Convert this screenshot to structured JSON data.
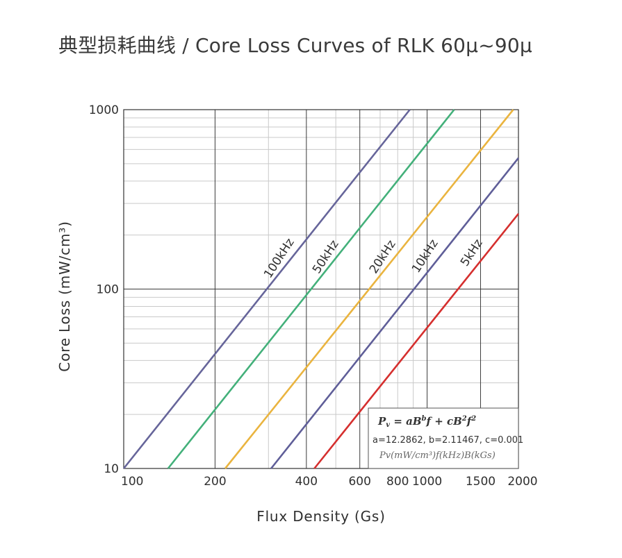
{
  "title": "典型损耗曲线 / Core Loss Curves of RLK 60μ~90μ",
  "chart_data": {
    "type": "line",
    "xscale": "log",
    "yscale": "log",
    "xlabel": "Flux Density (Gs)",
    "ylabel": "Core Loss (mW/cm³)",
    "xlim": [
      100,
      2000
    ],
    "ylim": [
      10,
      1000
    ],
    "grid": true,
    "x_ticks": [
      {
        "value": 100,
        "label": "100"
      },
      {
        "value": 200,
        "label": "200"
      },
      {
        "value": 400,
        "label": "400"
      },
      {
        "value": 600,
        "label": "600"
      },
      {
        "value": 800,
        "label": "800"
      },
      {
        "value": 1000,
        "label": "1000"
      },
      {
        "value": 1500,
        "label": "1500"
      },
      {
        "value": 2000,
        "label": "2000"
      }
    ],
    "y_ticks": [
      {
        "value": 10,
        "label": "10"
      },
      {
        "value": 100,
        "label": "100"
      },
      {
        "value": 1000,
        "label": "1000"
      }
    ],
    "x_major_grid": [
      200,
      400,
      600,
      1000,
      1500
    ],
    "x_minor_grid": [
      300,
      500,
      700,
      800,
      900
    ],
    "y_major_grid": [
      100
    ],
    "y_minor_grid": [
      20,
      30,
      40,
      50,
      60,
      70,
      80,
      90,
      200,
      300,
      400,
      500,
      600,
      700,
      800,
      900
    ],
    "series": [
      {
        "name": "100kHz",
        "color": "#66659a",
        "x": [
          100,
          877
        ],
        "y": [
          10,
          1000
        ]
      },
      {
        "name": "50kHz",
        "color": "#43b07a",
        "x": [
          140,
          1228
        ],
        "y": [
          10,
          1000
        ]
      },
      {
        "name": "20kHz",
        "color": "#eab43f",
        "x": [
          216,
          1922
        ],
        "y": [
          10,
          1000
        ]
      },
      {
        "name": "10kHz",
        "color": "#5f5e98",
        "x": [
          306,
          2000
        ],
        "y": [
          10,
          538
        ]
      },
      {
        "name": "5kHz",
        "color": "#d52f2e",
        "x": [
          425,
          2000
        ],
        "y": [
          10,
          263
        ]
      }
    ],
    "annotation": {
      "formula": "Pv=aB^b f + cB²f²",
      "params": "a=12.2862,  b=2.11467,  c=0.001",
      "units": "Pv(mW/cm³)f(kHz)B(kGs)",
      "placement": "bottom-right"
    }
  }
}
